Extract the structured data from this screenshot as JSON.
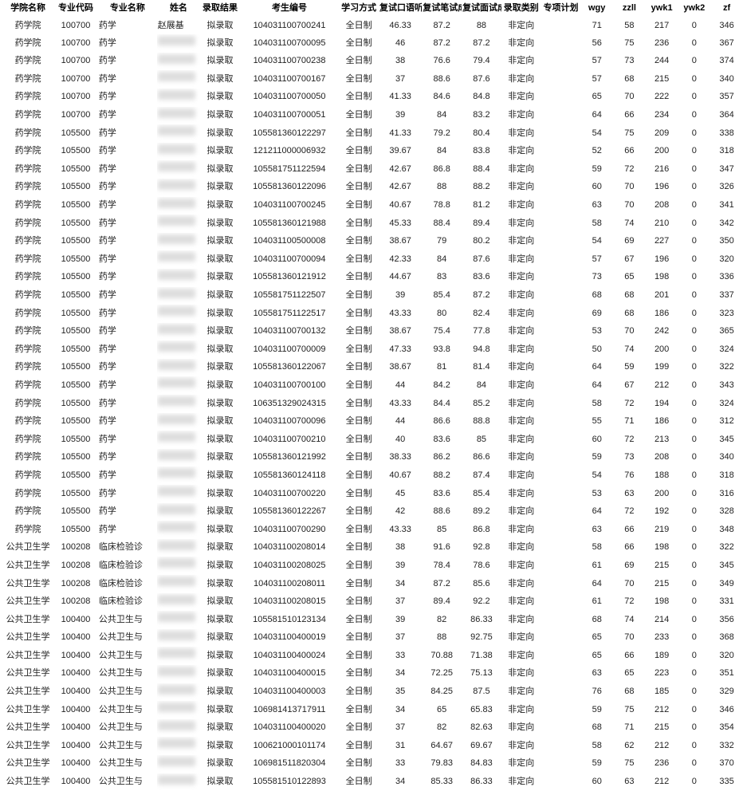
{
  "headers": {
    "college": "学院名称",
    "code": "专业代码",
    "major": "专业名称",
    "name": "姓名",
    "result": "录取结果",
    "exam": "考生编号",
    "mode": "学习方式",
    "oral": "复试口语听力",
    "written": "复试笔试成绩",
    "interview": "复试面试成绩",
    "type": "录取类别",
    "plan": "专项计划",
    "wgy": "wgy",
    "zzll": "zzll",
    "ywk1": "ywk1",
    "ywk2": "ywk2",
    "zf": "zf"
  },
  "constants": {
    "result": "拟录取",
    "mode": "全日制",
    "type": "非定向",
    "college1": "药学院",
    "college2": "公共卫生学",
    "major_yx": "药学",
    "major_lc": "临床检验诊",
    "major_gg": "公共卫生与"
  },
  "rows": [
    {
      "college": "药学院",
      "code": "100700",
      "major": "药学",
      "name": "赵展基",
      "exam": "104031100700241",
      "oral": "46.33",
      "written": "87.2",
      "interview": "88",
      "wgy": "71",
      "zzll": "58",
      "ywk1": "217",
      "ywk2": "0",
      "zf": "346"
    },
    {
      "college": "药学院",
      "code": "100700",
      "major": "药学",
      "name": "",
      "exam": "104031100700095",
      "oral": "46",
      "written": "87.2",
      "interview": "87.2",
      "wgy": "56",
      "zzll": "75",
      "ywk1": "236",
      "ywk2": "0",
      "zf": "367"
    },
    {
      "college": "药学院",
      "code": "100700",
      "major": "药学",
      "name": "",
      "exam": "104031100700238",
      "oral": "38",
      "written": "76.6",
      "interview": "79.4",
      "wgy": "57",
      "zzll": "73",
      "ywk1": "244",
      "ywk2": "0",
      "zf": "374"
    },
    {
      "college": "药学院",
      "code": "100700",
      "major": "药学",
      "name": "",
      "exam": "104031100700167",
      "oral": "37",
      "written": "88.6",
      "interview": "87.6",
      "wgy": "57",
      "zzll": "68",
      "ywk1": "215",
      "ywk2": "0",
      "zf": "340"
    },
    {
      "college": "药学院",
      "code": "100700",
      "major": "药学",
      "name": "",
      "exam": "104031100700050",
      "oral": "41.33",
      "written": "84.6",
      "interview": "84.8",
      "wgy": "65",
      "zzll": "70",
      "ywk1": "222",
      "ywk2": "0",
      "zf": "357"
    },
    {
      "college": "药学院",
      "code": "100700",
      "major": "药学",
      "name": "",
      "exam": "104031100700051",
      "oral": "39",
      "written": "84",
      "interview": "83.2",
      "wgy": "64",
      "zzll": "66",
      "ywk1": "234",
      "ywk2": "0",
      "zf": "364"
    },
    {
      "college": "药学院",
      "code": "105500",
      "major": "药学",
      "name": "",
      "exam": "105581360122297",
      "oral": "41.33",
      "written": "79.2",
      "interview": "80.4",
      "wgy": "54",
      "zzll": "75",
      "ywk1": "209",
      "ywk2": "0",
      "zf": "338"
    },
    {
      "college": "药学院",
      "code": "105500",
      "major": "药学",
      "name": "",
      "exam": "121211000006932",
      "oral": "39.67",
      "written": "84",
      "interview": "83.8",
      "wgy": "52",
      "zzll": "66",
      "ywk1": "200",
      "ywk2": "0",
      "zf": "318"
    },
    {
      "college": "药学院",
      "code": "105500",
      "major": "药学",
      "name": "",
      "exam": "105581751122594",
      "oral": "42.67",
      "written": "86.8",
      "interview": "88.4",
      "wgy": "59",
      "zzll": "72",
      "ywk1": "216",
      "ywk2": "0",
      "zf": "347"
    },
    {
      "college": "药学院",
      "code": "105500",
      "major": "药学",
      "name": "",
      "exam": "105581360122096",
      "oral": "42.67",
      "written": "88",
      "interview": "88.2",
      "wgy": "60",
      "zzll": "70",
      "ywk1": "196",
      "ywk2": "0",
      "zf": "326"
    },
    {
      "college": "药学院",
      "code": "105500",
      "major": "药学",
      "name": "",
      "exam": "104031100700245",
      "oral": "40.67",
      "written": "78.8",
      "interview": "81.2",
      "wgy": "63",
      "zzll": "70",
      "ywk1": "208",
      "ywk2": "0",
      "zf": "341"
    },
    {
      "college": "药学院",
      "code": "105500",
      "major": "药学",
      "name": "",
      "exam": "105581360121988",
      "oral": "45.33",
      "written": "88.4",
      "interview": "89.4",
      "wgy": "58",
      "zzll": "74",
      "ywk1": "210",
      "ywk2": "0",
      "zf": "342"
    },
    {
      "college": "药学院",
      "code": "105500",
      "major": "药学",
      "name": "",
      "exam": "104031100500008",
      "oral": "38.67",
      "written": "79",
      "interview": "80.2",
      "wgy": "54",
      "zzll": "69",
      "ywk1": "227",
      "ywk2": "0",
      "zf": "350"
    },
    {
      "college": "药学院",
      "code": "105500",
      "major": "药学",
      "name": "",
      "exam": "104031100700094",
      "oral": "42.33",
      "written": "84",
      "interview": "87.6",
      "wgy": "57",
      "zzll": "67",
      "ywk1": "196",
      "ywk2": "0",
      "zf": "320"
    },
    {
      "college": "药学院",
      "code": "105500",
      "major": "药学",
      "name": "",
      "exam": "105581360121912",
      "oral": "44.67",
      "written": "83",
      "interview": "83.6",
      "wgy": "73",
      "zzll": "65",
      "ywk1": "198",
      "ywk2": "0",
      "zf": "336"
    },
    {
      "college": "药学院",
      "code": "105500",
      "major": "药学",
      "name": "",
      "exam": "105581751122507",
      "oral": "39",
      "written": "85.4",
      "interview": "87.2",
      "wgy": "68",
      "zzll": "68",
      "ywk1": "201",
      "ywk2": "0",
      "zf": "337"
    },
    {
      "college": "药学院",
      "code": "105500",
      "major": "药学",
      "name": "",
      "exam": "105581751122517",
      "oral": "43.33",
      "written": "80",
      "interview": "82.4",
      "wgy": "69",
      "zzll": "68",
      "ywk1": "186",
      "ywk2": "0",
      "zf": "323"
    },
    {
      "college": "药学院",
      "code": "105500",
      "major": "药学",
      "name": "",
      "exam": "104031100700132",
      "oral": "38.67",
      "written": "75.4",
      "interview": "77.8",
      "wgy": "53",
      "zzll": "70",
      "ywk1": "242",
      "ywk2": "0",
      "zf": "365"
    },
    {
      "college": "药学院",
      "code": "105500",
      "major": "药学",
      "name": "",
      "exam": "104031100700009",
      "oral": "47.33",
      "written": "93.8",
      "interview": "94.8",
      "wgy": "50",
      "zzll": "74",
      "ywk1": "200",
      "ywk2": "0",
      "zf": "324"
    },
    {
      "college": "药学院",
      "code": "105500",
      "major": "药学",
      "name": "",
      "exam": "105581360122067",
      "oral": "38.67",
      "written": "81",
      "interview": "81.4",
      "wgy": "64",
      "zzll": "59",
      "ywk1": "199",
      "ywk2": "0",
      "zf": "322"
    },
    {
      "college": "药学院",
      "code": "105500",
      "major": "药学",
      "name": "",
      "exam": "104031100700100",
      "oral": "44",
      "written": "84.2",
      "interview": "84",
      "wgy": "64",
      "zzll": "67",
      "ywk1": "212",
      "ywk2": "0",
      "zf": "343"
    },
    {
      "college": "药学院",
      "code": "105500",
      "major": "药学",
      "name": "",
      "exam": "106351329024315",
      "oral": "43.33",
      "written": "84.4",
      "interview": "85.2",
      "wgy": "58",
      "zzll": "72",
      "ywk1": "194",
      "ywk2": "0",
      "zf": "324"
    },
    {
      "college": "药学院",
      "code": "105500",
      "major": "药学",
      "name": "",
      "exam": "104031100700096",
      "oral": "44",
      "written": "86.6",
      "interview": "88.8",
      "wgy": "55",
      "zzll": "71",
      "ywk1": "186",
      "ywk2": "0",
      "zf": "312"
    },
    {
      "college": "药学院",
      "code": "105500",
      "major": "药学",
      "name": "",
      "exam": "104031100700210",
      "oral": "40",
      "written": "83.6",
      "interview": "85",
      "wgy": "60",
      "zzll": "72",
      "ywk1": "213",
      "ywk2": "0",
      "zf": "345"
    },
    {
      "college": "药学院",
      "code": "105500",
      "major": "药学",
      "name": "",
      "exam": "105581360121992",
      "oral": "38.33",
      "written": "86.2",
      "interview": "86.6",
      "wgy": "59",
      "zzll": "73",
      "ywk1": "208",
      "ywk2": "0",
      "zf": "340"
    },
    {
      "college": "药学院",
      "code": "105500",
      "major": "药学",
      "name": "",
      "exam": "105581360124118",
      "oral": "40.67",
      "written": "88.2",
      "interview": "87.4",
      "wgy": "54",
      "zzll": "76",
      "ywk1": "188",
      "ywk2": "0",
      "zf": "318"
    },
    {
      "college": "药学院",
      "code": "105500",
      "major": "药学",
      "name": "",
      "exam": "104031100700220",
      "oral": "45",
      "written": "83.6",
      "interview": "85.4",
      "wgy": "53",
      "zzll": "63",
      "ywk1": "200",
      "ywk2": "0",
      "zf": "316"
    },
    {
      "college": "药学院",
      "code": "105500",
      "major": "药学",
      "name": "",
      "exam": "105581360122267",
      "oral": "42",
      "written": "88.6",
      "interview": "89.2",
      "wgy": "64",
      "zzll": "72",
      "ywk1": "192",
      "ywk2": "0",
      "zf": "328"
    },
    {
      "college": "药学院",
      "code": "105500",
      "major": "药学",
      "name": "",
      "exam": "104031100700290",
      "oral": "43.33",
      "written": "85",
      "interview": "86.8",
      "wgy": "63",
      "zzll": "66",
      "ywk1": "219",
      "ywk2": "0",
      "zf": "348"
    },
    {
      "college": "公共卫生学",
      "code": "100208",
      "major": "临床检验诊",
      "name": "",
      "exam": "104031100208014",
      "oral": "38",
      "written": "91.6",
      "interview": "92.8",
      "wgy": "58",
      "zzll": "66",
      "ywk1": "198",
      "ywk2": "0",
      "zf": "322"
    },
    {
      "college": "公共卫生学",
      "code": "100208",
      "major": "临床检验诊",
      "name": "",
      "exam": "104031100208025",
      "oral": "39",
      "written": "78.4",
      "interview": "78.6",
      "wgy": "61",
      "zzll": "69",
      "ywk1": "215",
      "ywk2": "0",
      "zf": "345"
    },
    {
      "college": "公共卫生学",
      "code": "100208",
      "major": "临床检验诊",
      "name": "",
      "exam": "104031100208011",
      "oral": "34",
      "written": "87.2",
      "interview": "85.6",
      "wgy": "64",
      "zzll": "70",
      "ywk1": "215",
      "ywk2": "0",
      "zf": "349"
    },
    {
      "college": "公共卫生学",
      "code": "100208",
      "major": "临床检验诊",
      "name": "",
      "exam": "104031100208015",
      "oral": "37",
      "written": "89.4",
      "interview": "92.2",
      "wgy": "61",
      "zzll": "72",
      "ywk1": "198",
      "ywk2": "0",
      "zf": "331"
    },
    {
      "college": "公共卫生学",
      "code": "100400",
      "major": "公共卫生与",
      "name": "",
      "exam": "105581510123134",
      "oral": "39",
      "written": "82",
      "interview": "86.33",
      "wgy": "68",
      "zzll": "74",
      "ywk1": "214",
      "ywk2": "0",
      "zf": "356"
    },
    {
      "college": "公共卫生学",
      "code": "100400",
      "major": "公共卫生与",
      "name": "",
      "exam": "104031100400019",
      "oral": "37",
      "written": "88",
      "interview": "92.75",
      "wgy": "65",
      "zzll": "70",
      "ywk1": "233",
      "ywk2": "0",
      "zf": "368"
    },
    {
      "college": "公共卫生学",
      "code": "100400",
      "major": "公共卫生与",
      "name": "",
      "exam": "104031100400024",
      "oral": "33",
      "written": "70.88",
      "interview": "71.38",
      "wgy": "65",
      "zzll": "66",
      "ywk1": "189",
      "ywk2": "0",
      "zf": "320"
    },
    {
      "college": "公共卫生学",
      "code": "100400",
      "major": "公共卫生与",
      "name": "",
      "exam": "104031100400015",
      "oral": "34",
      "written": "72.25",
      "interview": "75.13",
      "wgy": "63",
      "zzll": "65",
      "ywk1": "223",
      "ywk2": "0",
      "zf": "351"
    },
    {
      "college": "公共卫生学",
      "code": "100400",
      "major": "公共卫生与",
      "name": "",
      "exam": "104031100400003",
      "oral": "35",
      "written": "84.25",
      "interview": "87.5",
      "wgy": "76",
      "zzll": "68",
      "ywk1": "185",
      "ywk2": "0",
      "zf": "329"
    },
    {
      "college": "公共卫生学",
      "code": "100400",
      "major": "公共卫生与",
      "name": "",
      "exam": "106981413717911",
      "oral": "34",
      "written": "65",
      "interview": "65.83",
      "wgy": "59",
      "zzll": "75",
      "ywk1": "212",
      "ywk2": "0",
      "zf": "346"
    },
    {
      "college": "公共卫生学",
      "code": "100400",
      "major": "公共卫生与",
      "name": "",
      "exam": "104031100400020",
      "oral": "37",
      "written": "82",
      "interview": "82.63",
      "wgy": "68",
      "zzll": "71",
      "ywk1": "215",
      "ywk2": "0",
      "zf": "354"
    },
    {
      "college": "公共卫生学",
      "code": "100400",
      "major": "公共卫生与",
      "name": "",
      "exam": "100621000101174",
      "oral": "31",
      "written": "64.67",
      "interview": "69.67",
      "wgy": "58",
      "zzll": "62",
      "ywk1": "212",
      "ywk2": "0",
      "zf": "332"
    },
    {
      "college": "公共卫生学",
      "code": "100400",
      "major": "公共卫生与",
      "name": "",
      "exam": "106981511820304",
      "oral": "33",
      "written": "79.83",
      "interview": "84.83",
      "wgy": "59",
      "zzll": "75",
      "ywk1": "236",
      "ywk2": "0",
      "zf": "370"
    },
    {
      "college": "公共卫生学",
      "code": "100400",
      "major": "公共卫生与",
      "name": "",
      "exam": "105581510122893",
      "oral": "34",
      "written": "85.33",
      "interview": "86.33",
      "wgy": "60",
      "zzll": "63",
      "ywk1": "212",
      "ywk2": "0",
      "zf": "335"
    }
  ]
}
